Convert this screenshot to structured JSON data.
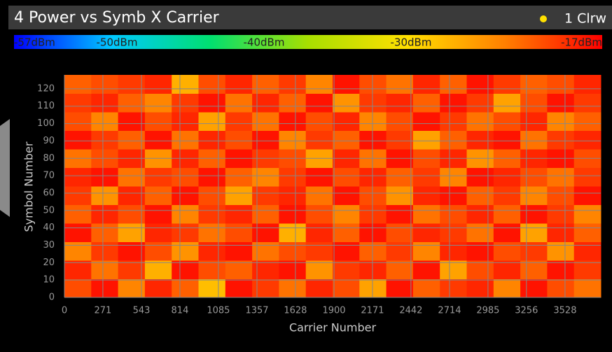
{
  "chart_data": {
    "type": "heatmap",
    "title": "4 Power vs Symb X Carrier",
    "trace": "1 Clrw",
    "x_label": "Carrier Number",
    "y_label": "Symbol Number",
    "xlim": [
      0,
      3780
    ],
    "ylim": [
      0,
      128
    ],
    "xticks": [
      0,
      271,
      543,
      814,
      1085,
      1357,
      1628,
      1900,
      2171,
      2442,
      2714,
      2985,
      3256,
      3528
    ],
    "yticks": [
      0,
      10,
      20,
      30,
      40,
      50,
      60,
      70,
      80,
      90,
      100,
      110,
      120
    ],
    "zlim": [
      -57,
      -17
    ],
    "zticks": [
      {
        "value": -57,
        "label": "-57dBm"
      },
      {
        "value": -50,
        "label": "-50dBm"
      },
      {
        "value": -40,
        "label": "-40dBm"
      },
      {
        "value": -30,
        "label": "-30dBm"
      },
      {
        "value": -17,
        "label": "-17dBm"
      }
    ],
    "colorscale": [
      "#0000ff",
      "#00c8ff",
      "#00e070",
      "#a8e000",
      "#ffe000",
      "#ff8000",
      "#ff0000"
    ],
    "grid": true,
    "z": [
      [
        -21,
        -18,
        -24,
        -19,
        -22,
        -28,
        -18,
        -20,
        -23,
        -19,
        -21,
        -26,
        -18,
        -22,
        -20,
        -19,
        -24,
        -18,
        -21,
        -23
      ],
      [
        -19,
        -23,
        -20,
        -27,
        -18,
        -21,
        -22,
        -19,
        -18,
        -25,
        -20,
        -19,
        -22,
        -18,
        -26,
        -21,
        -19,
        -22,
        -18,
        -20
      ],
      [
        -24,
        -20,
        -18,
        -21,
        -25,
        -19,
        -18,
        -23,
        -21,
        -20,
        -18,
        -22,
        -20,
        -24,
        -19,
        -18,
        -21,
        -20,
        -25,
        -19
      ],
      [
        -18,
        -22,
        -26,
        -19,
        -20,
        -23,
        -21,
        -18,
        -27,
        -19,
        -22,
        -18,
        -21,
        -19,
        -20,
        -23,
        -18,
        -26,
        -19,
        -22
      ],
      [
        -22,
        -19,
        -21,
        -18,
        -24,
        -20,
        -19,
        -22,
        -18,
        -21,
        -24,
        -20,
        -18,
        -23,
        -21,
        -19,
        -22,
        -18,
        -20,
        -24
      ],
      [
        -20,
        -25,
        -19,
        -22,
        -18,
        -21,
        -26,
        -20,
        -19,
        -23,
        -18,
        -21,
        -25,
        -19,
        -18,
        -22,
        -20,
        -24,
        -21,
        -18
      ],
      [
        -19,
        -18,
        -23,
        -20,
        -21,
        -18,
        -22,
        -24,
        -20,
        -18,
        -21,
        -19,
        -22,
        -20,
        -24,
        -18,
        -19,
        -21,
        -23,
        -20
      ],
      [
        -23,
        -21,
        -19,
        -25,
        -19,
        -22,
        -18,
        -20,
        -21,
        -26,
        -19,
        -23,
        -18,
        -21,
        -19,
        -25,
        -22,
        -19,
        -18,
        -21
      ],
      [
        -18,
        -20,
        -22,
        -18,
        -23,
        -19,
        -21,
        -18,
        -24,
        -20,
        -22,
        -18,
        -20,
        -26,
        -22,
        -19,
        -18,
        -23,
        -20,
        -19
      ],
      [
        -21,
        -24,
        -18,
        -21,
        -19,
        -26,
        -20,
        -23,
        -18,
        -21,
        -19,
        -24,
        -21,
        -18,
        -20,
        -23,
        -21,
        -19,
        -24,
        -22
      ],
      [
        -20,
        -19,
        -22,
        -24,
        -20,
        -18,
        -23,
        -19,
        -22,
        -18,
        -25,
        -20,
        -19,
        -22,
        -18,
        -20,
        -26,
        -21,
        -18,
        -20
      ],
      [
        -22,
        -21,
        -20,
        -19,
        -27,
        -21,
        -19,
        -22,
        -20,
        -24,
        -18,
        -21,
        -23,
        -19,
        -22,
        -18,
        -20,
        -22,
        -21,
        -19
      ]
    ]
  }
}
